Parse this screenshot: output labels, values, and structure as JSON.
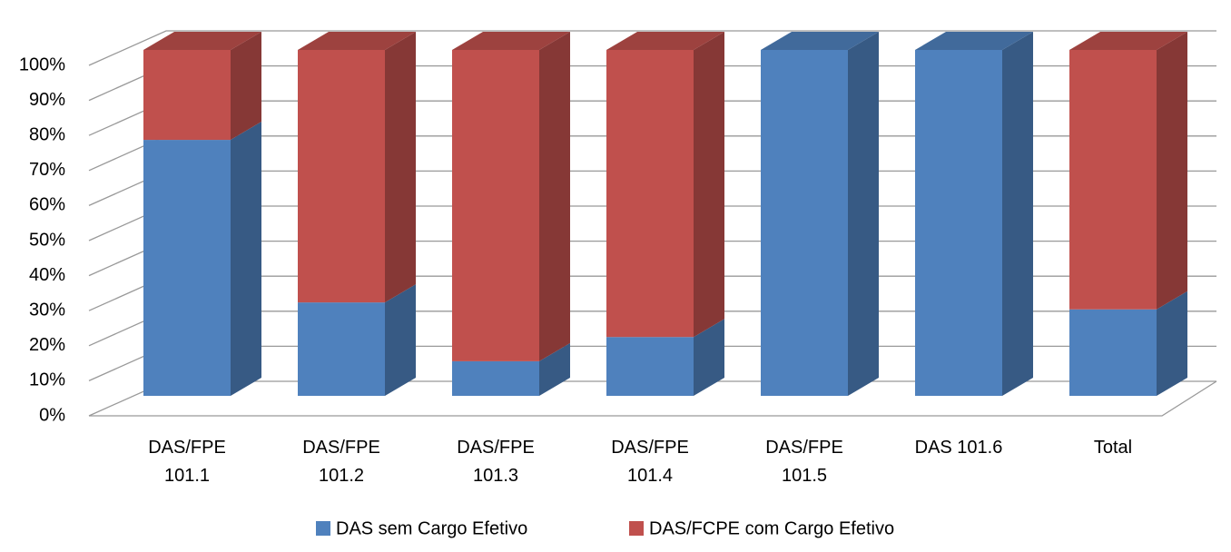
{
  "chart_data": {
    "type": "bar3d_stacked",
    "categories": [
      "DAS/FPE 101.1",
      "DAS/FPE 101.2",
      "DAS/FPE 101.3",
      "DAS/FPE 101.4",
      "DAS/FPE 101.5",
      "DAS 101.6",
      "Total"
    ],
    "series": [
      {
        "name": "DAS sem Cargo Efetivo",
        "color": "#4f81bd",
        "values": [
          74,
          27,
          10,
          17,
          100,
          100,
          25
        ]
      },
      {
        "name": "DAS/FCPE com Cargo Efetivo",
        "color": "#c0504d",
        "values": [
          26,
          73,
          90,
          83,
          0,
          0,
          75
        ]
      }
    ],
    "ylim": [
      0,
      100
    ],
    "yticks": [
      {
        "value": 0,
        "label": "0%"
      },
      {
        "value": 10,
        "label": "10%"
      },
      {
        "value": 20,
        "label": "20%"
      },
      {
        "value": 30,
        "label": "30%"
      },
      {
        "value": 40,
        "label": "40%"
      },
      {
        "value": 50,
        "label": "50%"
      },
      {
        "value": 60,
        "label": "60%"
      },
      {
        "value": 70,
        "label": "70%"
      },
      {
        "value": 80,
        "label": "80%"
      },
      {
        "value": 90,
        "label": "90%"
      },
      {
        "value": 100,
        "label": "100%"
      }
    ],
    "grid": true,
    "legend": "bottom"
  }
}
